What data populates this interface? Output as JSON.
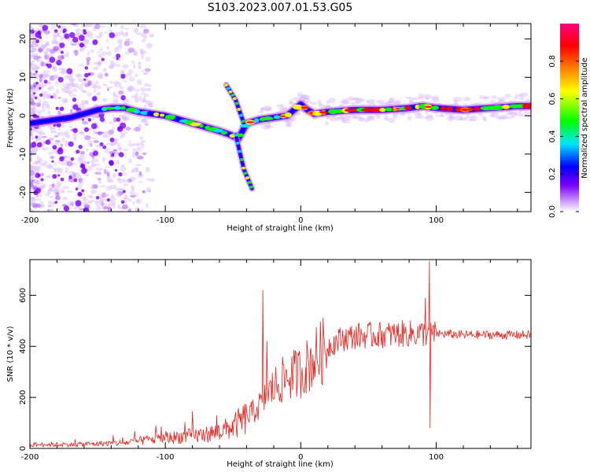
{
  "figure": {
    "title": "S103.2023.007.01.53.G05"
  },
  "chart_data": [
    {
      "type": "heatmap",
      "xlabel": "Height of straight line (km)",
      "ylabel": "Frequency (Hz)",
      "xlim": [
        -200,
        170
      ],
      "ylim": [
        -25,
        24
      ],
      "xticks": [
        -200,
        -100,
        0,
        100
      ],
      "yticks": [
        -20,
        -10,
        0,
        10,
        20
      ],
      "colorbar": {
        "label": "Normalized spectral amplitude",
        "range": [
          0,
          1
        ],
        "ticks": [
          "0.0",
          "0.2",
          "0.4",
          "0.6",
          "0.8"
        ],
        "colors": [
          "#ffffff",
          "#c890ff",
          "#7a00ff",
          "#0000ff",
          "#00e5ff",
          "#00ff00",
          "#ffff00",
          "#ff8000",
          "#ff0000",
          "#ff0080"
        ]
      },
      "ridge": {
        "x": [
          -200,
          -190,
          -180,
          -170,
          -160,
          -150,
          -140,
          -130,
          -120,
          -110,
          -100,
          -90,
          -80,
          -70,
          -60,
          -52,
          -46,
          -40,
          -35,
          -30,
          -20,
          -10,
          -5,
          0,
          5,
          10,
          20,
          40,
          60,
          80,
          90,
          100,
          120,
          140,
          160,
          170
        ],
        "y": [
          -2,
          -1.5,
          -1,
          -0.5,
          0.5,
          1.5,
          2,
          2,
          1,
          0.5,
          0,
          -1,
          -2,
          -3,
          -4,
          -5,
          -6,
          -2,
          -1.5,
          -1,
          -0.5,
          0,
          1.5,
          3,
          1.5,
          0.5,
          1,
          1.5,
          1.5,
          2,
          2.5,
          2,
          1.5,
          2,
          2.5,
          2.5
        ]
      },
      "branches": [
        {
          "x": [
            -55,
            -48,
            -42
          ],
          "y": [
            8,
            4,
            -2
          ]
        },
        {
          "x": [
            -48,
            -42,
            -36
          ],
          "y": [
            -5,
            -14,
            -19
          ]
        }
      ]
    },
    {
      "type": "line",
      "xlabel": "Height of straight line (km)",
      "ylabel": "SNR (10 * v/v)",
      "xlim": [
        -200,
        170
      ],
      "ylim": [
        0,
        740
      ],
      "xticks": [
        -200,
        -100,
        0,
        100
      ],
      "yticks": [
        0,
        200,
        400,
        600
      ],
      "color": "#e8231e",
      "envelope": {
        "x": [
          -200,
          -170,
          -150,
          -130,
          -110,
          -100,
          -90,
          -80,
          -70,
          -60,
          -50,
          -40,
          -30,
          -20,
          -10,
          0,
          10,
          20,
          30,
          40,
          60,
          80,
          100,
          120,
          140,
          160,
          170
        ],
        "y": [
          15,
          15,
          18,
          22,
          35,
          40,
          45,
          50,
          55,
          65,
          85,
          120,
          170,
          240,
          280,
          300,
          350,
          400,
          430,
          440,
          445,
          450,
          450,
          445,
          445,
          445,
          445
        ]
      },
      "spikes": [
        {
          "x": -80,
          "y": 145
        },
        {
          "x": -103,
          "y": 85
        },
        {
          "x": -28,
          "y": 620
        },
        {
          "x": -25,
          "y": 420
        },
        {
          "x": 95,
          "y": 735
        },
        {
          "x": 95.5,
          "y": 80
        },
        {
          "x": 92,
          "y": 590
        }
      ]
    }
  ]
}
